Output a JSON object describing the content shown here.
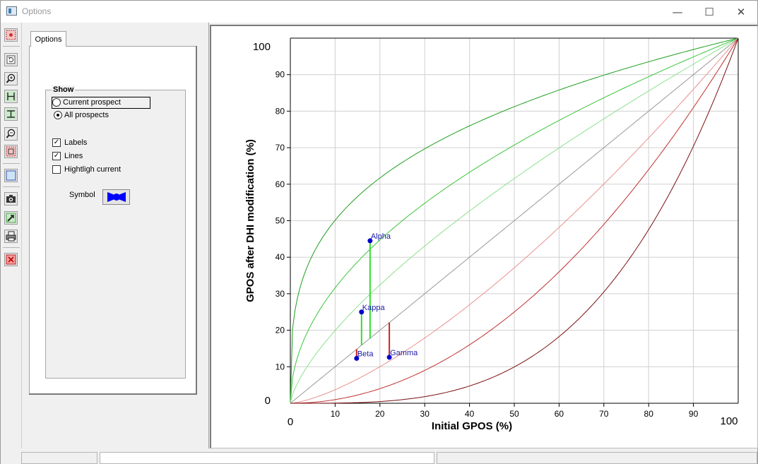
{
  "window": {
    "title": "Options"
  },
  "titlebar_buttons": {
    "minimize": "—",
    "maximize": "☐",
    "close": "✕"
  },
  "toolbar": {
    "tools": [
      "select-tool-icon",
      "refresh-icon",
      "zoom-in-icon",
      "zoom-horizontal-icon",
      "zoom-vertical-icon",
      "zoom-out-icon",
      "fit-icon",
      "frame-icon",
      "camera-icon",
      "export-icon",
      "print-icon",
      "close-chart-icon"
    ]
  },
  "options": {
    "tab_label": "Options",
    "show_group_label": "Show",
    "radio_current": "Current prospect",
    "radio_all": "All prospects",
    "selected_radio": "all",
    "check_labels": "Labels",
    "check_labels_value": true,
    "check_lines": "Lines",
    "check_lines_value": true,
    "check_highlight": "Hightligh current",
    "check_highlight_value": false,
    "symbol_label": "Symbol"
  },
  "colors": {
    "dark_green": "#1f9e1f",
    "mid_green": "#3cc43c",
    "light_green": "#8ee08e",
    "diagonal": "#999999",
    "light_red": "#e89090",
    "mid_red": "#c03030",
    "dark_red": "#7a1010",
    "point": "#0000cc",
    "label": "#1a1aa6",
    "up_line": "#33dd33",
    "down_line": "#cc2222"
  },
  "chart_data": {
    "type": "line",
    "xlabel": "Initial GPOS (%)",
    "ylabel": "GPOS after DHI modification (%)",
    "xlim": [
      0,
      100
    ],
    "ylim": [
      0,
      100
    ],
    "x_ticks": [
      10,
      20,
      30,
      40,
      50,
      60,
      70,
      80,
      90
    ],
    "y_ticks": [
      10,
      20,
      30,
      40,
      50,
      60,
      70,
      80,
      90
    ],
    "x_min_label": "0",
    "x_max_label": "100",
    "y_min_label": "0",
    "y_max_label": "100",
    "grid": true,
    "curves": [
      {
        "exponent": 0.3,
        "color_key": "dark_green"
      },
      {
        "exponent": 0.5,
        "color_key": "mid_green"
      },
      {
        "exponent": 0.7,
        "color_key": "light_green"
      },
      {
        "exponent": 1.0,
        "color_key": "diagonal"
      },
      {
        "exponent": 1.43,
        "color_key": "light_red"
      },
      {
        "exponent": 2.0,
        "color_key": "mid_red"
      },
      {
        "exponent": 3.33,
        "color_key": "dark_red"
      }
    ],
    "points": [
      {
        "label": "Alpha",
        "x": 17.8,
        "y": 44.5,
        "y_initial": 17.8
      },
      {
        "label": "Kappa",
        "x": 15.9,
        "y": 25.0,
        "y_initial": 15.9
      },
      {
        "label": "Beta",
        "x": 14.8,
        "y": 12.3,
        "y_initial": 14.8
      },
      {
        "label": "Gamma",
        "x": 22.1,
        "y": 12.6,
        "y_initial": 22.1
      }
    ]
  },
  "status": {
    "cell1": "",
    "cell2": "",
    "cell3": ""
  }
}
